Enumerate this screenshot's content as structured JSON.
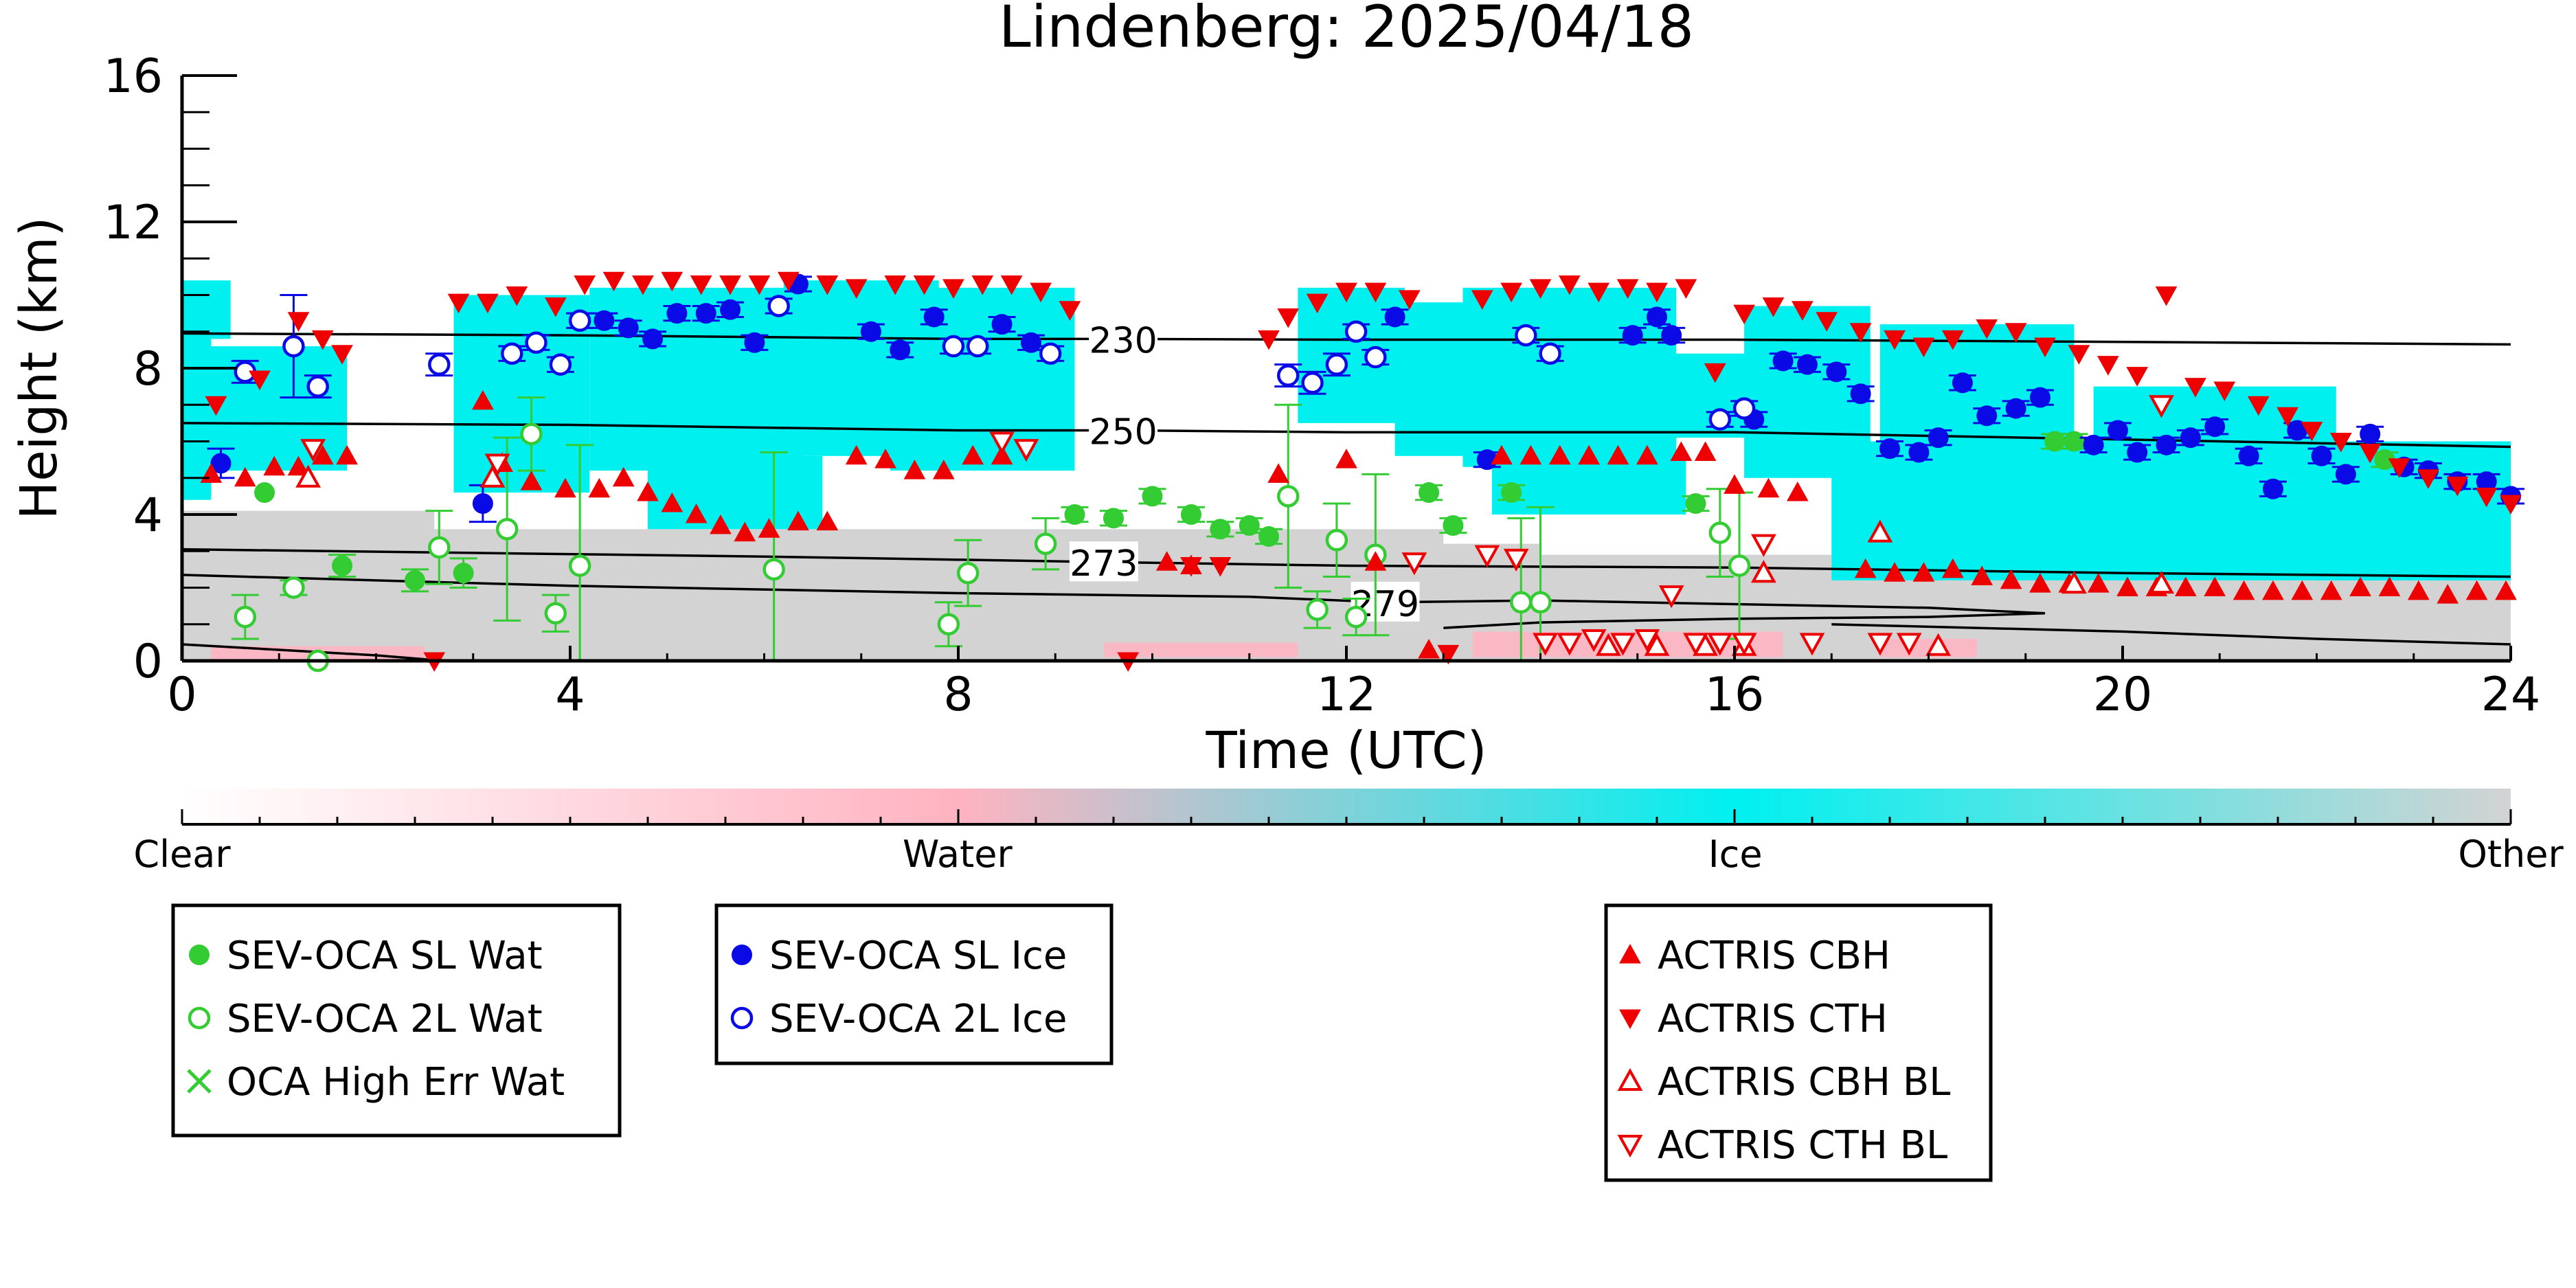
{
  "chart_data": {
    "type": "scatter",
    "title": "Lindenberg: 2025/04/18",
    "xlabel": "Time (UTC)",
    "ylabel": "Height (km)",
    "xlim": [
      0,
      24
    ],
    "ylim": [
      0,
      16
    ],
    "xticks": [
      0,
      4,
      8,
      12,
      16,
      20,
      24
    ],
    "yticks": [
      0,
      4,
      8,
      12,
      16
    ],
    "grid": false,
    "colors": {
      "sl_wat": "#33cc33",
      "sl_ice": "#0a0ae6",
      "actris": "#ee0000",
      "ice_mask": "#00f0f0",
      "other_mask": "#d3d3d3",
      "clear": "#ffffff",
      "water": "#ffb3c1"
    },
    "colorbar": {
      "labels": [
        {
          "text": "Clear",
          "pos": 0
        },
        {
          "text": "Water",
          "pos": 0.333
        },
        {
          "text": "Ice",
          "pos": 0.667
        },
        {
          "text": "Other",
          "pos": 1
        }
      ]
    },
    "contours": [
      {
        "label": "230",
        "label_x": 9.7,
        "points": [
          [
            0,
            8.95
          ],
          [
            4,
            8.9
          ],
          [
            8,
            8.8
          ],
          [
            9.7,
            8.8
          ],
          [
            12,
            8.78
          ],
          [
            16,
            8.78
          ],
          [
            20,
            8.72
          ],
          [
            24,
            8.65
          ]
        ]
      },
      {
        "label": "250",
        "label_x": 9.7,
        "points": [
          [
            0,
            6.5
          ],
          [
            4,
            6.45
          ],
          [
            8,
            6.3
          ],
          [
            9.7,
            6.3
          ],
          [
            12,
            6.25
          ],
          [
            16,
            6.25
          ],
          [
            20,
            6.05
          ],
          [
            24,
            5.85
          ]
        ]
      },
      {
        "label": "273",
        "label_x": 9.5,
        "points": [
          [
            0,
            3.05
          ],
          [
            3,
            2.95
          ],
          [
            6,
            2.85
          ],
          [
            9.5,
            2.7
          ],
          [
            12,
            2.6
          ],
          [
            16,
            2.55
          ],
          [
            20,
            2.4
          ],
          [
            24,
            2.3
          ]
        ]
      },
      {
        "label": "279",
        "label_x": 12.4,
        "points": [
          [
            0,
            2.35
          ],
          [
            2,
            2.2
          ],
          [
            4,
            2.05
          ],
          [
            8,
            1.85
          ],
          [
            11,
            1.75
          ],
          [
            12.4,
            1.6
          ],
          [
            14,
            1.65
          ],
          [
            16,
            1.55
          ],
          [
            18,
            1.45
          ],
          [
            19.2,
            1.3
          ],
          [
            18,
            1.2
          ],
          [
            16,
            1.15
          ],
          [
            14,
            1.05
          ],
          [
            13,
            0.9
          ]
        ]
      },
      {
        "label": "",
        "label_x": 0,
        "points": [
          [
            0,
            0.45
          ],
          [
            1,
            0.3
          ],
          [
            2,
            0.15
          ],
          [
            2.6,
            0.02
          ]
        ]
      },
      {
        "label": "",
        "label_x": 0,
        "points": [
          [
            17,
            1.0
          ],
          [
            20,
            0.8
          ],
          [
            22,
            0.6
          ],
          [
            24,
            0.45
          ]
        ]
      }
    ],
    "masks": {
      "other": [
        [
          0,
          0,
          2.6,
          4.1
        ],
        [
          0,
          0,
          24,
          2.4
        ],
        [
          2.6,
          0,
          13,
          3.6
        ],
        [
          11,
          0.7,
          14,
          3.2
        ],
        [
          14,
          0.4,
          17.5,
          2.9
        ]
      ],
      "water": [
        [
          0.3,
          0,
          2.5,
          0.4
        ],
        [
          9.5,
          0.1,
          11.5,
          0.5
        ],
        [
          13.3,
          0.1,
          16.5,
          0.8
        ],
        [
          17.5,
          0.1,
          18.5,
          0.6
        ]
      ],
      "ice": [
        [
          0,
          4.4,
          0.3,
          10.2
        ],
        [
          0.2,
          5.2,
          1.7,
          8.6
        ],
        [
          2.8,
          4.6,
          4.2,
          10
        ],
        [
          4.2,
          5.2,
          6.4,
          10.2
        ],
        [
          4.8,
          3.6,
          6.6,
          5.6
        ],
        [
          6.2,
          5.6,
          7.8,
          10.4
        ],
        [
          7.3,
          5.2,
          9.2,
          10.2
        ],
        [
          11.5,
          6.5,
          12.6,
          10.2
        ],
        [
          12.5,
          5.6,
          13.2,
          9.8
        ],
        [
          13.2,
          5.3,
          15.4,
          10.2
        ],
        [
          13.5,
          4.0,
          15.5,
          5.6
        ],
        [
          15.3,
          6.1,
          16.6,
          8.4
        ],
        [
          16.1,
          5.0,
          17.4,
          9.7
        ],
        [
          17.0,
          2.2,
          24,
          6.0
        ],
        [
          17.5,
          6.0,
          19.5,
          9.2
        ],
        [
          19.7,
          6.0,
          22.2,
          7.5
        ],
        [
          22.0,
          2.2,
          24,
          5.5
        ],
        [
          0,
          8.8,
          0.5,
          10.4
        ]
      ]
    },
    "series": [
      {
        "name": "SEV-OCA SL Wat",
        "marker": "o",
        "filled": true,
        "color": "#33cc33",
        "x": [
          0.85,
          1.65,
          2.4,
          2.9,
          9.2,
          9.6,
          10.0,
          10.4,
          10.7,
          11.0,
          11.2,
          12.85,
          13.1,
          13.7,
          15.6,
          19.3,
          19.5,
          22.7
        ],
        "y": [
          4.6,
          2.6,
          2.2,
          2.4,
          4.0,
          3.9,
          4.5,
          4.0,
          3.6,
          3.7,
          3.4,
          4.6,
          3.7,
          4.6,
          4.3,
          6.0,
          6.0,
          5.5
        ],
        "err": [
          0,
          0.3,
          0.3,
          0.4,
          0.2,
          0.2,
          0.2,
          0.2,
          0.2,
          0.2,
          0.2,
          0.2,
          0.2,
          0.2,
          0.2,
          0.2,
          0.2,
          0.2
        ]
      },
      {
        "name": "SEV-OCA 2L Wat",
        "marker": "o",
        "filled": false,
        "color": "#33cc33",
        "x": [
          0.65,
          1.15,
          1.4,
          2.65,
          3.35,
          3.6,
          3.85,
          4.1,
          6.1,
          7.9,
          8.1,
          8.9,
          11.4,
          11.7,
          11.9,
          12.1,
          12.3,
          13.8,
          14.0,
          15.85,
          16.05
        ],
        "y": [
          1.2,
          2.0,
          0.0,
          3.1,
          3.6,
          6.2,
          1.3,
          2.6,
          2.5,
          1.0,
          2.4,
          3.2,
          4.5,
          1.4,
          3.3,
          1.2,
          2.9,
          1.6,
          1.6,
          3.5,
          2.6
        ],
        "err": [
          0.6,
          0.2,
          0,
          1.0,
          2.5,
          1.0,
          0.5,
          3.3,
          3.2,
          0.6,
          0.9,
          0.7,
          2.5,
          0.5,
          1.0,
          0.5,
          2.2,
          2.3,
          2.6,
          1.2,
          2.0
        ]
      },
      {
        "name": "OCA High Err Wat",
        "marker": "x",
        "filled": false,
        "color": "#33cc33",
        "x": [],
        "y": [],
        "err": []
      },
      {
        "name": "SEV-OCA SL Ice",
        "marker": "o",
        "filled": true,
        "color": "#0a0ae6",
        "x": [
          0.4,
          3.1,
          4.35,
          4.6,
          4.85,
          5.1,
          5.4,
          5.65,
          5.9,
          6.35,
          7.1,
          7.4,
          7.75,
          8.45,
          8.75,
          12.5,
          13.45,
          14.95,
          15.2,
          15.35,
          16.2,
          16.5,
          16.75,
          17.05,
          17.3,
          17.6,
          17.9,
          18.1,
          18.35,
          18.6,
          18.9,
          19.15,
          19.7,
          19.95,
          20.15,
          20.45,
          20.7,
          20.95,
          21.3,
          21.55,
          21.8,
          22.05,
          22.3,
          22.55,
          22.9,
          23.15,
          23.45,
          23.75,
          24.0
        ],
        "y": [
          5.4,
          4.3,
          9.3,
          9.1,
          8.8,
          9.5,
          9.5,
          9.6,
          8.7,
          10.3,
          9.0,
          8.5,
          9.4,
          9.2,
          8.7,
          9.4,
          5.5,
          8.9,
          9.4,
          8.9,
          6.6,
          8.2,
          8.1,
          7.9,
          7.3,
          5.8,
          5.7,
          6.1,
          7.6,
          6.7,
          6.9,
          7.2,
          5.9,
          6.3,
          5.7,
          5.9,
          6.1,
          6.4,
          5.6,
          4.7,
          6.3,
          5.6,
          5.1,
          6.2,
          5.3,
          5.2,
          4.9,
          4.9,
          4.5
        ],
        "err": [
          0.4,
          0.5,
          0.2,
          0.2,
          0.2,
          0.2,
          0.2,
          0.2,
          0.2,
          0.2,
          0.2,
          0.2,
          0.2,
          0.2,
          0.2,
          0.2,
          0.2,
          0.2,
          0.2,
          0.2,
          0.2,
          0.2,
          0.2,
          0.2,
          0.2,
          0.2,
          0.2,
          0.2,
          0.2,
          0.2,
          0.2,
          0.2,
          0.2,
          0.2,
          0.2,
          0.2,
          0.2,
          0.2,
          0.2,
          0.2,
          0.2,
          0.2,
          0.2,
          0.2,
          0.2,
          0.2,
          0.2,
          0.2,
          0.2
        ]
      },
      {
        "name": "SEV-OCA 2L Ice",
        "marker": "o",
        "filled": false,
        "color": "#0a0ae6",
        "x": [
          0.65,
          1.15,
          1.4,
          2.65,
          3.4,
          3.65,
          3.9,
          4.1,
          6.15,
          7.95,
          8.2,
          8.95,
          11.4,
          11.65,
          11.9,
          12.1,
          12.3,
          13.85,
          14.1,
          15.85,
          16.1
        ],
        "y": [
          7.9,
          8.6,
          7.5,
          8.1,
          8.4,
          8.7,
          8.1,
          9.3,
          9.7,
          8.6,
          8.6,
          8.4,
          7.8,
          7.6,
          8.1,
          9.0,
          8.3,
          8.9,
          8.4,
          6.6,
          6.9
        ],
        "err": [
          0.3,
          1.4,
          0.3,
          0.3,
          0.2,
          0.2,
          0.2,
          0.2,
          0.2,
          0.2,
          0.2,
          0.2,
          0.3,
          0.3,
          0.3,
          0.2,
          0.2,
          0.2,
          0.2,
          0.2,
          0.2
        ]
      },
      {
        "name": "ACTRIS CBH",
        "marker": "^",
        "filled": true,
        "color": "#ee0000",
        "x": [
          0.3,
          0.65,
          0.95,
          1.2,
          1.45,
          1.7,
          3.1,
          3.3,
          3.6,
          3.95,
          4.3,
          4.55,
          4.8,
          5.05,
          5.3,
          5.55,
          5.8,
          6.05,
          6.35,
          6.65,
          6.95,
          7.25,
          7.55,
          7.85,
          8.15,
          8.45,
          10.15,
          10.4,
          11.3,
          12.0,
          12.3,
          12.85,
          13.6,
          13.9,
          14.2,
          14.5,
          14.8,
          15.1,
          15.45,
          15.7,
          16.0,
          16.35,
          16.65,
          17.35,
          17.65,
          17.95,
          18.25,
          18.55,
          18.85,
          19.15,
          19.45,
          19.75,
          20.05,
          20.35,
          20.65,
          20.95,
          21.25,
          21.55,
          21.85,
          22.15,
          22.45,
          22.75,
          23.05,
          23.35,
          23.65,
          23.95
        ],
        "y": [
          5.1,
          5.0,
          5.3,
          5.3,
          5.6,
          5.6,
          7.1,
          5.4,
          4.9,
          4.7,
          4.7,
          5.0,
          4.6,
          4.3,
          4.0,
          3.7,
          3.5,
          3.6,
          3.8,
          3.8,
          5.6,
          5.5,
          5.2,
          5.2,
          5.6,
          5.6,
          2.7,
          2.6,
          5.1,
          5.5,
          2.7,
          0.3,
          5.6,
          5.6,
          5.6,
          5.6,
          5.6,
          5.6,
          5.7,
          5.7,
          4.8,
          4.7,
          4.6,
          2.5,
          2.4,
          2.4,
          2.5,
          2.3,
          2.2,
          2.1,
          2.1,
          2.1,
          2.0,
          2.0,
          2.0,
          2.0,
          1.9,
          1.9,
          1.9,
          1.9,
          2.0,
          2.0,
          1.9,
          1.8,
          1.9,
          1.9
        ]
      },
      {
        "name": "ACTRIS CTH",
        "marker": "v",
        "filled": true,
        "color": "#ee0000",
        "x": [
          0.35,
          0.8,
          1.2,
          1.45,
          1.65,
          2.6,
          2.85,
          3.15,
          3.45,
          3.85,
          4.15,
          4.45,
          4.75,
          5.05,
          5.35,
          5.65,
          5.95,
          6.25,
          6.65,
          6.95,
          7.35,
          7.65,
          7.95,
          8.25,
          8.55,
          8.85,
          9.15,
          9.75,
          10.4,
          10.7,
          11.2,
          11.4,
          11.7,
          12.0,
          12.3,
          12.65,
          13.05,
          13.4,
          13.7,
          14.0,
          14.3,
          14.6,
          14.9,
          15.2,
          15.5,
          15.8,
          16.1,
          16.4,
          16.7,
          16.95,
          17.3,
          17.65,
          17.95,
          18.25,
          18.6,
          18.9,
          19.2,
          19.55,
          19.85,
          20.15,
          20.45,
          20.75,
          21.05,
          21.4,
          21.7,
          21.95,
          22.25,
          22.55,
          22.85,
          23.15,
          23.45,
          23.75,
          24.0
        ],
        "y": [
          7.0,
          7.7,
          9.3,
          8.8,
          8.4,
          0.0,
          9.8,
          9.8,
          10.0,
          9.7,
          10.3,
          10.4,
          10.3,
          10.4,
          10.3,
          10.3,
          10.3,
          10.4,
          10.3,
          10.2,
          10.3,
          10.3,
          10.2,
          10.3,
          10.3,
          10.1,
          9.6,
          0.0,
          2.6,
          2.6,
          8.8,
          9.4,
          9.8,
          10.1,
          10.1,
          9.9,
          0.2,
          9.9,
          10.1,
          10.2,
          10.3,
          10.1,
          10.2,
          10.1,
          10.2,
          7.9,
          9.5,
          9.7,
          9.6,
          9.3,
          9.0,
          8.8,
          8.6,
          8.8,
          9.1,
          9.0,
          8.6,
          8.4,
          8.1,
          7.8,
          10.0,
          7.5,
          7.4,
          7.0,
          6.7,
          6.3,
          6.0,
          5.7,
          5.3,
          5.0,
          4.8,
          4.5,
          4.3
        ]
      },
      {
        "name": "ACTRIS CBH BL",
        "marker": "^",
        "filled": false,
        "color": "#ee0000",
        "x": [
          1.3,
          3.2,
          14.7,
          15.2,
          15.7,
          16.1,
          16.3,
          17.5,
          18.1,
          19.5,
          20.4
        ],
        "y": [
          5.0,
          5.0,
          0.4,
          0.4,
          0.4,
          0.4,
          2.4,
          3.5,
          0.4,
          2.1,
          2.1
        ]
      },
      {
        "name": "ACTRIS CTH BL",
        "marker": "v",
        "filled": false,
        "color": "#ee0000",
        "x": [
          1.35,
          3.25,
          8.45,
          8.7,
          12.7,
          13.45,
          13.75,
          14.05,
          14.3,
          14.55,
          14.85,
          15.1,
          15.35,
          15.6,
          15.85,
          16.1,
          16.3,
          16.8,
          17.5,
          17.8,
          20.4
        ],
        "y": [
          5.8,
          5.4,
          6.0,
          5.8,
          2.7,
          2.9,
          2.8,
          0.5,
          0.5,
          0.6,
          0.5,
          0.6,
          1.8,
          0.5,
          0.5,
          0.5,
          3.2,
          0.5,
          0.5,
          0.5,
          7.0
        ]
      }
    ]
  }
}
